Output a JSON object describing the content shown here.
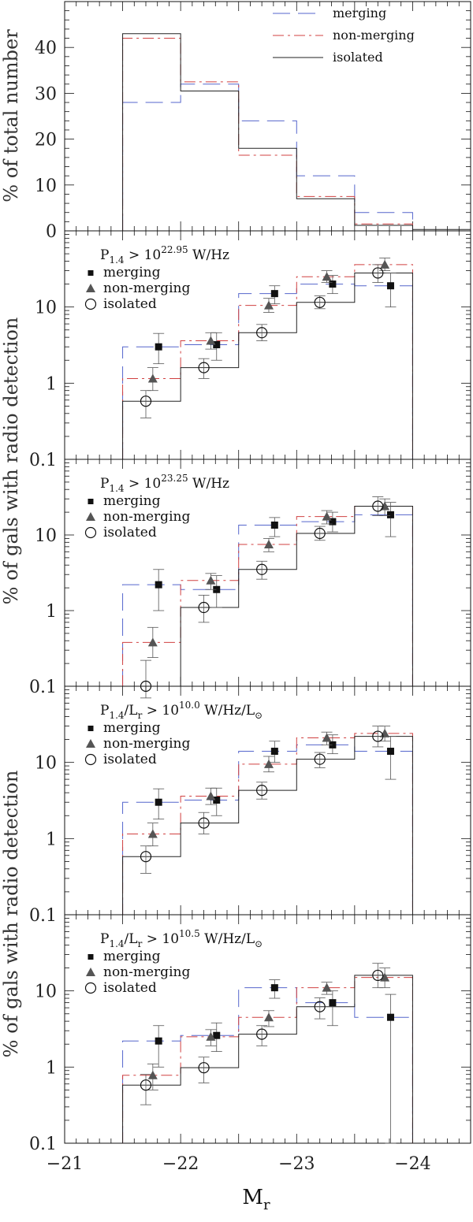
{
  "chart_data": [
    {
      "type": "step-histogram",
      "panel": 1,
      "ylabel": "% of total number",
      "yscale": "linear",
      "ylim": [
        0,
        50
      ],
      "yticks": [
        0,
        10,
        20,
        30,
        40
      ],
      "xlim": [
        -21,
        -24.5
      ],
      "bin_edges": [
        -21.5,
        -22.0,
        -22.5,
        -23.0,
        -23.5,
        -24.0
      ],
      "legend": [
        "merging",
        "non-merging",
        "isolated"
      ],
      "series": [
        {
          "name": "merging",
          "color": "#5566cc",
          "dash": "long",
          "values": [
            28,
            32,
            24,
            12,
            4
          ]
        },
        {
          "name": "non-merging",
          "color": "#d04040",
          "dash": "dashdot",
          "values": [
            42,
            32.5,
            16.5,
            7.5,
            1.5
          ]
        },
        {
          "name": "isolated",
          "color": "#222222",
          "dash": "solid",
          "values": [
            43,
            30.5,
            18,
            7,
            1.2
          ]
        }
      ]
    },
    {
      "type": "step-histogram-with-points",
      "panel": 2,
      "criterion_text": "P",
      "criterion_sub": "1.4",
      "criterion_mid": " > 10",
      "criterion_exp": "22.95",
      "criterion_unit": " W/Hz",
      "yscale": "log",
      "ylim": [
        0.1,
        100
      ],
      "yticks": [
        "0.1",
        "1",
        "10"
      ],
      "bin_edges": [
        -21.5,
        -22.0,
        -22.5,
        -23.0,
        -23.5,
        -24.0
      ],
      "legend": [
        "merging",
        "non-merging",
        "isolated"
      ],
      "series": [
        {
          "name": "merging",
          "values": [
            3.0,
            3.2,
            15,
            20,
            19
          ],
          "err_lo": [
            1.8,
            2.0,
            11,
            15,
            10
          ],
          "err_hi": [
            4.5,
            4.6,
            19,
            26,
            28
          ]
        },
        {
          "name": "non-merging",
          "values": [
            1.15,
            3.6,
            10.5,
            25,
            36
          ],
          "err_lo": [
            0.8,
            2.8,
            8.5,
            21,
            30
          ],
          "err_hi": [
            1.6,
            4.6,
            13,
            30,
            44
          ]
        },
        {
          "name": "isolated",
          "values": [
            0.58,
            1.6,
            4.6,
            11.5,
            28
          ],
          "err_lo": [
            0.35,
            1.15,
            3.6,
            9.5,
            21
          ],
          "err_hi": [
            0.8,
            2.1,
            5.9,
            14,
            36
          ]
        }
      ]
    },
    {
      "type": "step-histogram-with-points",
      "panel": 3,
      "criterion_text": "P",
      "criterion_sub": "1.4",
      "criterion_mid": " > 10",
      "criterion_exp": "23.25",
      "criterion_unit": " W/Hz",
      "yscale": "log",
      "ylim": [
        0.1,
        100
      ],
      "yticks": [
        "0.1",
        "1",
        "10"
      ],
      "bin_edges": [
        -21.5,
        -22.0,
        -22.5,
        -23.0,
        -23.5,
        -24.0
      ],
      "legend": [
        "merging",
        "non-merging",
        "isolated"
      ],
      "series": [
        {
          "name": "merging",
          "values": [
            2.2,
            1.9,
            13.5,
            15,
            18.5
          ],
          "err_lo": [
            1.0,
            1.1,
            9.5,
            11,
            9.5
          ],
          "err_hi": [
            3.5,
            2.9,
            17,
            20,
            27
          ]
        },
        {
          "name": "non-merging",
          "values": [
            0.38,
            2.5,
            7.5,
            17.5,
            24
          ],
          "err_lo": [
            0.24,
            1.9,
            6.0,
            14,
            18
          ],
          "err_hi": [
            0.6,
            3.1,
            9.0,
            21,
            30
          ]
        },
        {
          "name": "isolated",
          "values": [
            0.1,
            1.1,
            3.5,
            10.5,
            24
          ],
          "err_lo": [
            0.07,
            0.7,
            2.6,
            8.5,
            18
          ],
          "err_hi": [
            0.22,
            1.6,
            4.5,
            13,
            32
          ]
        }
      ]
    },
    {
      "type": "step-histogram-with-points",
      "panel": 4,
      "criterion_text": "P",
      "criterion_sub": "1.4",
      "criterion_mid": "/L",
      "criterion_sub2": "r",
      "criterion_mid2": " > 10",
      "criterion_exp": "10.0",
      "criterion_unit": " W/Hz/L",
      "criterion_sun": "⊙",
      "yscale": "log",
      "ylim": [
        0.1,
        100
      ],
      "yticks": [
        "0.1",
        "1",
        "10"
      ],
      "bin_edges": [
        -21.5,
        -22.0,
        -22.5,
        -23.0,
        -23.5,
        -24.0
      ],
      "legend": [
        "merging",
        "non-merging",
        "isolated"
      ],
      "series": [
        {
          "name": "merging",
          "values": [
            3.0,
            3.2,
            14,
            17,
            14
          ],
          "err_lo": [
            1.8,
            2.0,
            10,
            13,
            6
          ],
          "err_hi": [
            4.5,
            4.6,
            19,
            23,
            22
          ]
        },
        {
          "name": "non-merging",
          "values": [
            1.15,
            3.6,
            9.5,
            21,
            24
          ],
          "err_lo": [
            0.8,
            2.8,
            7.5,
            17,
            19
          ],
          "err_hi": [
            1.6,
            4.6,
            12,
            25,
            30
          ]
        },
        {
          "name": "isolated",
          "values": [
            0.58,
            1.6,
            4.3,
            11,
            22
          ],
          "err_lo": [
            0.35,
            1.15,
            3.3,
            8.5,
            16
          ],
          "err_hi": [
            0.8,
            2.2,
            5.5,
            13.5,
            30
          ]
        }
      ]
    },
    {
      "type": "step-histogram-with-points",
      "panel": 5,
      "criterion_text": "P",
      "criterion_sub": "1.4",
      "criterion_mid": "/L",
      "criterion_sub2": "r",
      "criterion_mid2": " > 10",
      "criterion_exp": "10.5",
      "criterion_unit": " W/Hz/L",
      "criterion_sun": "⊙",
      "yscale": "log",
      "ylim": [
        0.1,
        100
      ],
      "yticks": [
        "0.1",
        "1",
        "10"
      ],
      "bin_edges": [
        -21.5,
        -22.0,
        -22.5,
        -23.0,
        -23.5,
        -24.0
      ],
      "legend": [
        "merging",
        "non-merging",
        "isolated"
      ],
      "series": [
        {
          "name": "merging",
          "values": [
            2.2,
            2.6,
            11,
            7,
            4.5
          ],
          "err_lo": [
            1.0,
            1.6,
            8,
            3.5,
            0.1
          ],
          "err_hi": [
            3.5,
            3.8,
            14,
            10,
            9
          ]
        },
        {
          "name": "non-merging",
          "values": [
            0.78,
            2.5,
            4.5,
            11,
            15
          ],
          "err_lo": [
            0.5,
            1.9,
            3.4,
            9,
            11
          ],
          "err_hi": [
            1.1,
            3.1,
            5.5,
            13,
            20
          ]
        },
        {
          "name": "isolated",
          "values": [
            0.58,
            0.98,
            2.7,
            6.2,
            16
          ],
          "err_lo": [
            0.32,
            0.62,
            1.9,
            4.3,
            11
          ],
          "err_hi": [
            0.8,
            1.35,
            3.5,
            8.1,
            23
          ]
        }
      ]
    }
  ],
  "axes": {
    "xticks": [
      "−21",
      "−22",
      "−23",
      "−24"
    ],
    "xlabel_main": "M",
    "xlabel_sub": "r",
    "ylabel_top": "% of total number",
    "ylabel_mid": "% of gals with radio detection",
    "ylabel_bot": "% of gals with radio detection"
  },
  "colors": {
    "merging": "#5566cc",
    "non_merging": "#d04040",
    "isolated": "#222222",
    "frame": "#111111"
  }
}
